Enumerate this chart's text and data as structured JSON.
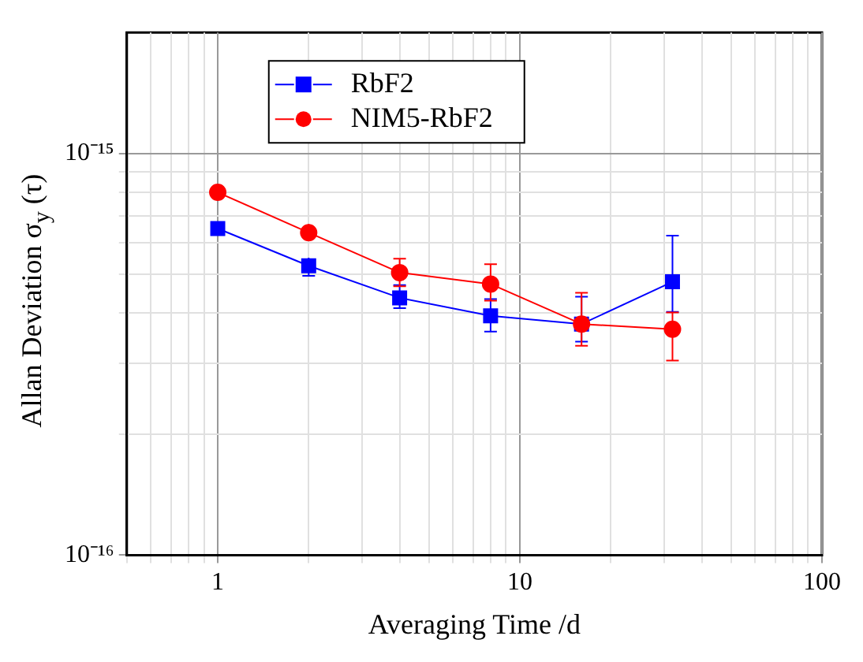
{
  "chart_data": {
    "type": "line",
    "xlabel": "Averaging Time /d",
    "ylabel": "Allan Deviation  σ$_{y}$ (τ)",
    "log": "xy",
    "grid": true,
    "legend": "top left",
    "line_style": "solid",
    "xlim": [
      0.5,
      100
    ],
    "ylim": [
      1e-16,
      2e-15
    ],
    "xticks": [
      {
        "value": 0.5,
        "label": null
      },
      {
        "value": 0.6,
        "label": null
      },
      {
        "value": 0.7,
        "label": null
      },
      {
        "value": 0.8,
        "label": null
      },
      {
        "value": 0.9,
        "label": null
      },
      1,
      {
        "value": 2,
        "label": null
      },
      {
        "value": 3,
        "label": null
      },
      {
        "value": 4,
        "label": null
      },
      {
        "value": 5,
        "label": null
      },
      {
        "value": 6,
        "label": null
      },
      {
        "value": 7,
        "label": null
      },
      {
        "value": 8,
        "label": null
      },
      {
        "value": 9,
        "label": null
      },
      10,
      {
        "value": 20,
        "label": null
      },
      {
        "value": 30,
        "label": null
      },
      {
        "value": 40,
        "label": null
      },
      {
        "value": 50,
        "label": null
      },
      {
        "value": 60,
        "label": null
      },
      {
        "value": 70,
        "label": null
      },
      {
        "value": 80,
        "label": null
      },
      {
        "value": 90,
        "label": null
      },
      100
    ],
    "yticks": [
      {
        "value": 1e-16,
        "label": "10⁻¹⁶"
      },
      {
        "value": 2e-16,
        "label": null
      },
      {
        "value": 3e-16,
        "label": null
      },
      {
        "value": 4e-16,
        "label": null
      },
      {
        "value": 5e-16,
        "label": null
      },
      {
        "value": 6e-16,
        "label": null
      },
      {
        "value": 7e-16,
        "label": null
      },
      {
        "value": 8e-16,
        "label": null
      },
      {
        "value": 9e-16,
        "label": null
      },
      {
        "value": 1e-15,
        "label": "10⁻¹⁵"
      }
    ],
    "x": [
      1,
      2,
      4,
      8,
      16,
      32
    ],
    "series": [
      {
        "name": "RbF2",
        "color": "#0000ff",
        "marker": "square",
        "values": [
          6.5e-16,
          5.25e-16,
          4.37e-16,
          3.94e-16,
          3.76e-16,
          4.79e-16
        ],
        "errors": [
          [
            6.4e-16,
            6.6e-16
          ],
          [
            4.96e-16,
            5.5e-16
          ],
          [
            4.12e-16,
            4.7e-16
          ],
          [
            3.6e-16,
            4.34e-16
          ],
          [
            3.4e-16,
            4.4e-16
          ],
          [
            4.03e-16,
            6.24e-16
          ]
        ]
      },
      {
        "name": "NIM5-RbF2",
        "color": "#ff0000",
        "marker": "circle",
        "values": [
          8e-16,
          6.35e-16,
          5.05e-16,
          4.73e-16,
          3.76e-16,
          3.65e-16
        ],
        "errors": [
          [
            7.7e-16,
            8.3e-16
          ],
          [
            6.06e-16,
            6.67e-16
          ],
          [
            4.67e-16,
            5.47e-16
          ],
          [
            4.3e-16,
            5.3e-16
          ],
          [
            3.32e-16,
            4.5e-16
          ],
          [
            3.05e-16,
            4.02e-16
          ]
        ]
      }
    ]
  }
}
